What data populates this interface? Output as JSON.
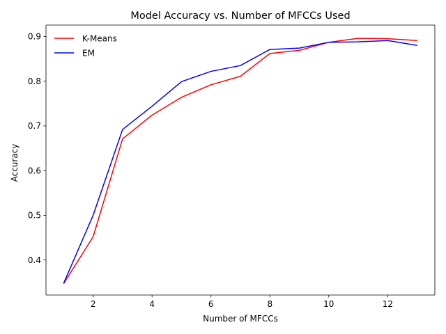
{
  "chart_data": {
    "type": "line",
    "title": "Model Accuracy vs. Number of MFCCs Used",
    "xlabel": "Number of MFCCs",
    "ylabel": "Accuracy",
    "x": [
      1,
      2,
      3,
      4,
      5,
      6,
      7,
      8,
      9,
      10,
      11,
      12,
      13
    ],
    "xlim": [
      0.4,
      13.6
    ],
    "ylim": [
      0.3216,
      0.9256
    ],
    "xticks": [
      2,
      4,
      6,
      8,
      10,
      12
    ],
    "xtick_labels": [
      "2",
      "4",
      "6",
      "8",
      "10",
      "12"
    ],
    "yticks": [
      0.4,
      0.5,
      0.6,
      0.7,
      0.8,
      0.9
    ],
    "ytick_labels": [
      "0.4",
      "0.5",
      "0.6",
      "0.7",
      "0.8",
      "0.9"
    ],
    "grid": false,
    "legend_position": "top-left",
    "series": [
      {
        "name": "K-Means",
        "color": "#ff0000",
        "values": [
          0.347,
          0.452,
          0.671,
          0.724,
          0.764,
          0.792,
          0.811,
          0.862,
          0.869,
          0.887,
          0.896,
          0.895,
          0.891
        ]
      },
      {
        "name": "EM",
        "color": "#0000ff",
        "values": [
          0.348,
          0.5,
          0.692,
          0.744,
          0.799,
          0.822,
          0.835,
          0.871,
          0.874,
          0.887,
          0.888,
          0.891,
          0.88
        ]
      }
    ]
  }
}
